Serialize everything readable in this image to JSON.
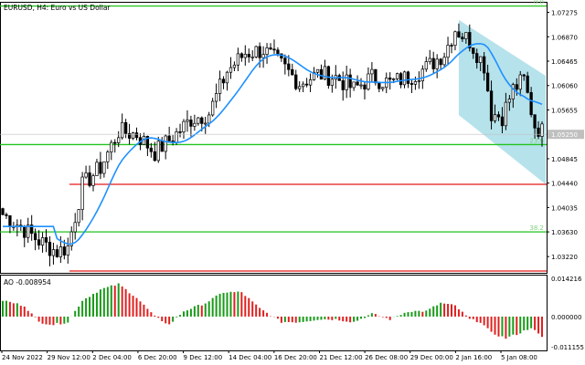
{
  "header": {
    "title": "EURUSD, H4:  Euro vs US Dollar",
    "oscillator_label": "AO -0.008954"
  },
  "colors": {
    "background": "#ffffff",
    "candles": "#000000",
    "moving_average": "#1e90ff",
    "fib_line": "#22c31e",
    "fib_label": "#7fd37d",
    "support_line": "#e51919",
    "channel_fill": "#a9dde8",
    "ao_up": "#1a9b1a",
    "ao_down": "#e02020",
    "price_tag_bg": "#c0c0c0",
    "frame": "#000000"
  },
  "chart_data": {
    "type": "candlestick",
    "symbol": "EURUSD",
    "timeframe": "H4",
    "ylim": [
      1.0295,
      1.0745
    ],
    "price_ticks": [
      "1.07275",
      "1.06870",
      "1.06465",
      "1.06060",
      "1.05655",
      "1.04845",
      "1.04440",
      "1.04035",
      "1.03630",
      "1.03220"
    ],
    "current_price_label": "1.05250",
    "current_price": 1.0525,
    "time_ticks": [
      "24 Nov 2022",
      "29 Nov 12:00",
      "2 Dec 04:00",
      "6 Dec 20:00",
      "9 Dec 12:00",
      "14 Dec 04:00",
      "16 Dec 20:00",
      "21 Dec 12:00",
      "26 Dec 08:00",
      "29 Dec 00:00",
      "2 Jan 16:00",
      "5 Jan 08:00"
    ],
    "levels": [
      {
        "label": "0.0",
        "price": 1.0738,
        "kind": "fibonacci"
      },
      {
        "label": "23.6",
        "price": 1.0508,
        "kind": "fibonacci"
      },
      {
        "label": "38.2",
        "price": 1.0363,
        "kind": "fibonacci"
      },
      {
        "label": "",
        "price": 1.0442,
        "kind": "support"
      },
      {
        "label": "",
        "price": 1.0298,
        "kind": "support"
      }
    ],
    "channel": {
      "upper": [
        1.0715,
        1.0622
      ],
      "lower": [
        1.0557,
        1.0442
      ],
      "x_start_bar": 126,
      "x_end_bar": 150
    },
    "series_notes": "approximate H4 closes, 150 bars",
    "waypoints": [
      [
        0,
        1.0392
      ],
      [
        5,
        1.0372
      ],
      [
        10,
        1.0348
      ],
      [
        15,
        1.033
      ],
      [
        18,
        1.0338
      ],
      [
        22,
        1.044
      ],
      [
        27,
        1.047
      ],
      [
        32,
        1.053
      ],
      [
        37,
        1.0525
      ],
      [
        42,
        1.0495
      ],
      [
        47,
        1.052
      ],
      [
        52,
        1.055
      ],
      [
        57,
        1.056
      ],
      [
        62,
        1.063
      ],
      [
        67,
        1.066
      ],
      [
        72,
        1.0665
      ],
      [
        77,
        1.064
      ],
      [
        82,
        1.061
      ],
      [
        87,
        1.0625
      ],
      [
        92,
        1.062
      ],
      [
        97,
        1.06
      ],
      [
        102,
        1.062
      ],
      [
        107,
        1.061
      ],
      [
        112,
        1.062
      ],
      [
        117,
        1.0635
      ],
      [
        122,
        1.066
      ],
      [
        125,
        1.07
      ],
      [
        129,
        1.068
      ],
      [
        133,
        1.064
      ],
      [
        135,
        1.056
      ],
      [
        138,
        1.0555
      ],
      [
        141,
        1.06
      ],
      [
        144,
        1.0615
      ],
      [
        147,
        1.054
      ],
      [
        150,
        1.0525
      ]
    ],
    "oscillator": {
      "name": "AO",
      "value": -0.008954,
      "ticks": [
        "0.014216",
        "0.000000",
        "-0.011155"
      ],
      "ylim": [
        -0.0125,
        0.0155
      ],
      "waypoints": [
        [
          0,
          0.006
        ],
        [
          6,
          0.004
        ],
        [
          10,
          -0.002
        ],
        [
          14,
          -0.003
        ],
        [
          18,
          -0.002
        ],
        [
          22,
          0.006
        ],
        [
          27,
          0.01
        ],
        [
          32,
          0.012
        ],
        [
          37,
          0.007
        ],
        [
          42,
          0.0
        ],
        [
          46,
          -0.003
        ],
        [
          50,
          0.002
        ],
        [
          56,
          0.005
        ],
        [
          61,
          0.009
        ],
        [
          66,
          0.009
        ],
        [
          71,
          0.003
        ],
        [
          77,
          -0.002
        ],
        [
          82,
          -0.002
        ],
        [
          87,
          -0.001
        ],
        [
          92,
          -0.001
        ],
        [
          97,
          -0.002
        ],
        [
          102,
          0.001
        ],
        [
          107,
          -0.001
        ],
        [
          112,
          0.002
        ],
        [
          117,
          0.002
        ],
        [
          121,
          0.005
        ],
        [
          125,
          0.004
        ],
        [
          129,
          -0.001
        ],
        [
          132,
          -0.002
        ],
        [
          135,
          -0.006
        ],
        [
          139,
          -0.008
        ],
        [
          143,
          -0.006
        ],
        [
          146,
          -0.004
        ],
        [
          150,
          -0.009
        ]
      ]
    }
  }
}
